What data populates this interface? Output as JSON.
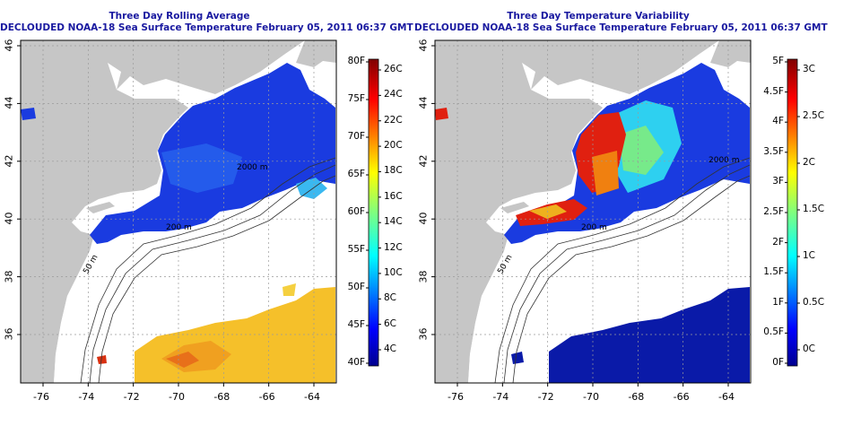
{
  "panels": [
    {
      "id": "avg",
      "title_line1": "Three Day Rolling Average",
      "title_line2": "DECLOUDED NOAA-18 Sea Surface Temperature February 05, 2011 06:37 GMT",
      "x_ticks": [
        "-76",
        "-74",
        "-72",
        "-70",
        "-68",
        "-66",
        "-64"
      ],
      "y_ticks": [
        "46",
        "44",
        "42",
        "40",
        "38",
        "36"
      ],
      "colorbar": {
        "scale": "jet",
        "left_labels": [
          "80F",
          "75F",
          "70F",
          "65F",
          "60F",
          "55F",
          "50F",
          "45F",
          "40F"
        ],
        "right_labels": [
          "26C",
          "24C",
          "22C",
          "20C",
          "18C",
          "16C",
          "14C",
          "12C",
          "10C",
          "8C",
          "6C",
          "4C"
        ]
      },
      "contour_labels": [
        "2000 m",
        "200 m",
        "50 m"
      ]
    },
    {
      "id": "var",
      "title_line1": "Three Day Temperature Variability",
      "title_line2": "DECLOUDED NOAA-18 Sea Surface Temperature February 05, 2011 06:37 GMT",
      "x_ticks": [
        "-76",
        "-74",
        "-72",
        "-70",
        "-68",
        "-66",
        "-64"
      ],
      "y_ticks": [
        "46",
        "44",
        "42",
        "40",
        "38",
        "36"
      ],
      "colorbar": {
        "scale": "jet",
        "left_labels": [
          "5F",
          "4.5F",
          "4F",
          "3.5F",
          "3F",
          "2.5F",
          "2F",
          "1.5F",
          "1F",
          "0.5F",
          "0F"
        ],
        "right_labels": [
          "3C",
          "2.5C",
          "2C",
          "1.5C",
          "1C",
          "0.5C",
          "0C"
        ]
      },
      "contour_labels": [
        "2000 m",
        "200 m",
        "50 m"
      ]
    }
  ],
  "colors": {
    "land": "#c6c6c6",
    "ocean": "#ffffff",
    "title": "#1a1aa0",
    "grid": "#9a9a9a"
  }
}
